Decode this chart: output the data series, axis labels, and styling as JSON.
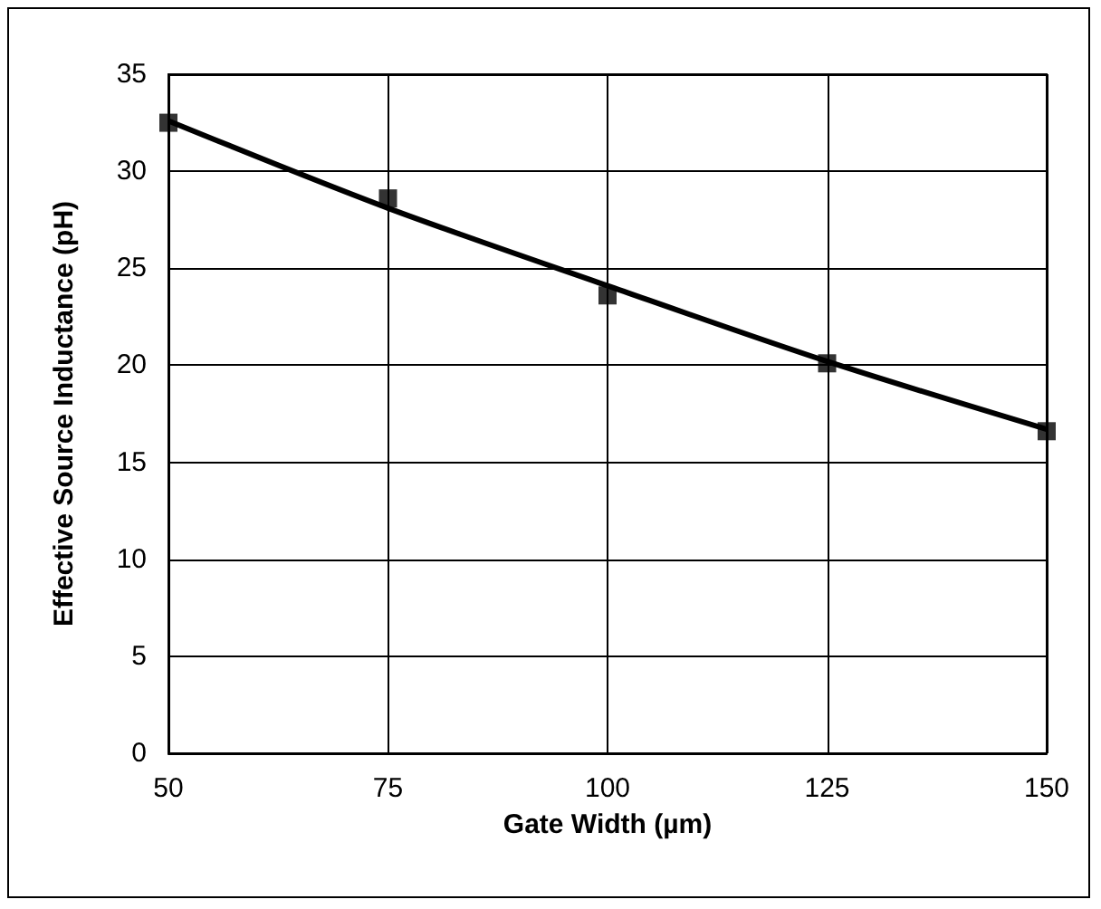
{
  "chart_data": {
    "type": "scatter",
    "xlabel": "Gate Width (µm)",
    "ylabel": "Effective Source Inductance (pH)",
    "x": [
      50,
      75,
      100,
      125,
      150
    ],
    "series": [
      {
        "color": "#000000",
        "marker": "square",
        "values": [
          32.5,
          28.6,
          23.6,
          20.1,
          16.6
        ]
      },
      {
        "type": "line",
        "color": "#000000",
        "marker": "none",
        "line_style": "solid",
        "x": [
          50,
          75,
          100,
          125,
          150
        ],
        "values": [
          32.6,
          28.1,
          24.1,
          20.2,
          16.7
        ]
      }
    ],
    "xlim": [
      50,
      150
    ],
    "xticks": [
      50,
      75,
      100,
      125,
      150
    ],
    "ylim": [
      0,
      35
    ],
    "yticks": [
      0,
      5,
      10,
      15,
      20,
      25,
      30,
      35
    ],
    "grid": true
  }
}
